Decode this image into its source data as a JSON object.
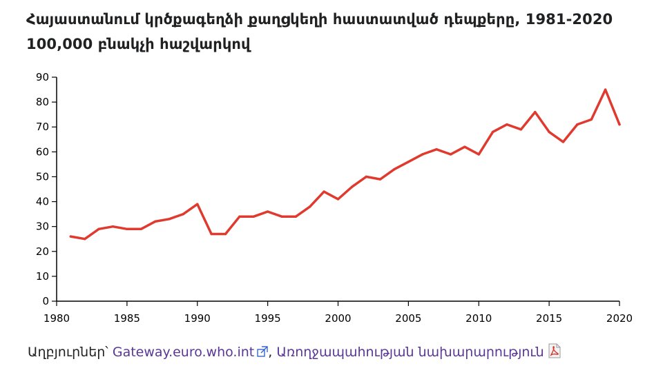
{
  "title": {
    "line1": "Հայաստանում կրծքագեղձի քաղցկեղի հաստատված դեպքերը, 1981-2020",
    "line2": "100,000 բնակչի հաշվարկով"
  },
  "sources": {
    "label": "Աղբյուրներ՝",
    "link1": "Gateway.euro.who.int",
    "separator": ",",
    "link2": "Առողջապահության նախարարություն"
  },
  "colors": {
    "series": "#e03a2e",
    "link": "#5a3696"
  },
  "icons": [
    "external-link-icon",
    "pdf-icon"
  ],
  "chart_data": {
    "type": "line",
    "title": "Հայաստանում կրծքագեղձի քաղցկեղի հաստատված դեպքերը, 1981-2020",
    "subtitle": "100,000 բնակչի հաշվարկով",
    "xlabel": "",
    "ylabel": "",
    "xlim": [
      1980,
      2020
    ],
    "ylim": [
      0,
      90
    ],
    "x_ticks": [
      1980,
      1985,
      1990,
      1995,
      2000,
      2005,
      2010,
      2015,
      2020
    ],
    "y_ticks": [
      0,
      10,
      20,
      30,
      40,
      50,
      60,
      70,
      80,
      90
    ],
    "grid": false,
    "x": [
      1981,
      1982,
      1983,
      1984,
      1985,
      1986,
      1987,
      1988,
      1989,
      1990,
      1991,
      1992,
      1993,
      1994,
      1995,
      1996,
      1997,
      1998,
      1999,
      2000,
      2001,
      2002,
      2003,
      2004,
      2005,
      2006,
      2007,
      2008,
      2009,
      2010,
      2011,
      2012,
      2013,
      2014,
      2015,
      2016,
      2017,
      2018,
      2019,
      2020
    ],
    "series": [
      {
        "values": [
          26,
          25,
          29,
          30,
          29,
          29,
          32,
          33,
          35,
          39,
          27,
          27,
          34,
          34,
          36,
          34,
          34,
          38,
          44,
          41,
          46,
          50,
          49,
          53,
          56,
          59,
          61,
          59,
          62,
          59,
          68,
          71,
          69,
          76,
          68,
          64,
          71,
          73,
          85,
          71
        ]
      }
    ]
  }
}
